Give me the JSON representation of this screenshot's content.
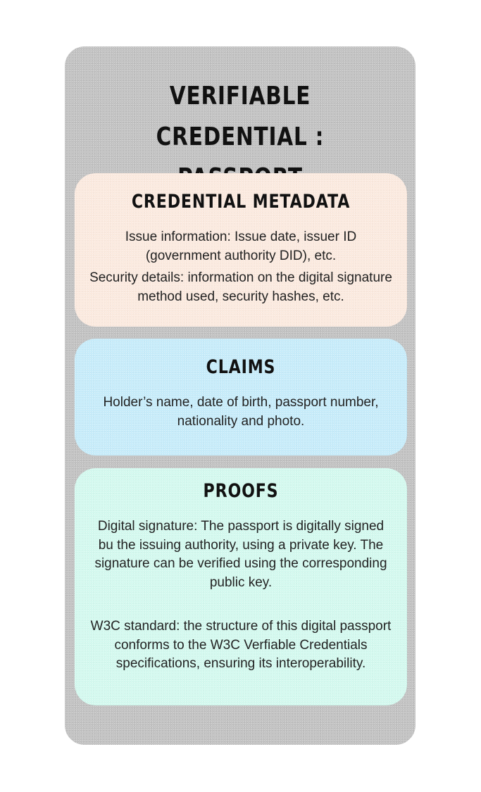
{
  "title": "VERIFIABLE CREDENTIAL : PASSPORT",
  "sections": {
    "metadata": {
      "heading": "CREDENTIAL METADATA",
      "items": [
        "Issue information: Issue date, issuer ID (government authority DID), etc.",
        "Security details: information on the digital signature method used, security hashes, etc."
      ]
    },
    "claims": {
      "heading": "CLAIMS",
      "items": [
        "Holder’s name, date of birth, passport number, nationality and photo."
      ]
    },
    "proofs": {
      "heading": "PROOFS",
      "items": [
        "Digital signature: The passport is digitally signed bu the issuing authority, using a private key. The signature can be verified using the corresponding public key.",
        "W3C standard: the structure of this digital passport conforms to the W3C Verfiable Credentials specifications, ensuring its interoperability."
      ]
    }
  },
  "colors": {
    "card": "#c4c4c4",
    "metadata_panel": "#fbeadf",
    "claims_panel": "#c7ecfa",
    "proofs_panel": "#d4f9ef"
  }
}
